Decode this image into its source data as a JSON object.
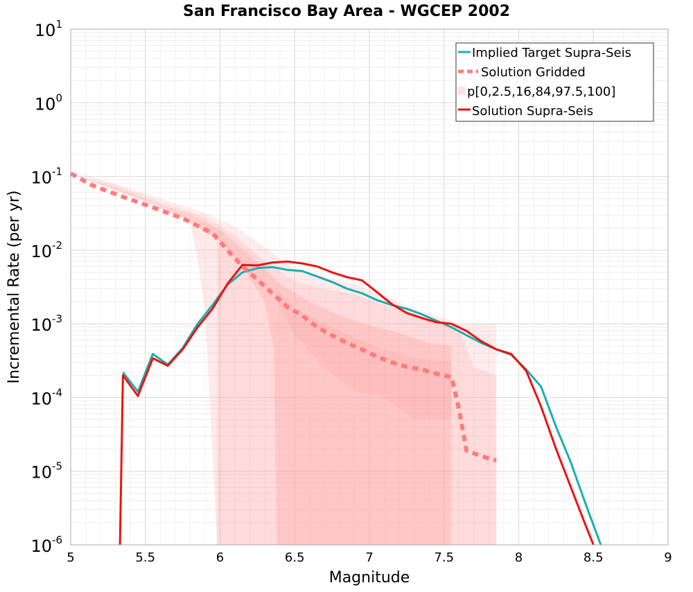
{
  "chart_data": {
    "type": "line",
    "title": "San Francisco Bay Area - WGCEP 2002",
    "xlabel": "Magnitude",
    "ylabel": "Incremental Rate (per yr)",
    "xlim": [
      5,
      9
    ],
    "ylim": [
      1e-06,
      10
    ],
    "yscale": "log",
    "grid": true,
    "legend_position": "top-right",
    "x_ticks": [
      5,
      5.5,
      6,
      6.5,
      7,
      7.5,
      8,
      8.5,
      9
    ],
    "x_tick_labels": [
      "5",
      "5.5",
      "6",
      "6.5",
      "7",
      "7.5",
      "8",
      "8.5",
      "9"
    ],
    "y_ticks": [
      {
        "value": 1e-06,
        "base": "10",
        "exp": "-6"
      },
      {
        "value": 1e-05,
        "base": "10",
        "exp": "-5"
      },
      {
        "value": 0.0001,
        "base": "10",
        "exp": "-4"
      },
      {
        "value": 0.001,
        "base": "10",
        "exp": "-3"
      },
      {
        "value": 0.01,
        "base": "10",
        "exp": "-2"
      },
      {
        "value": 0.1,
        "base": "10",
        "exp": "-1"
      },
      {
        "value": 1,
        "base": "10",
        "exp": "0"
      },
      {
        "value": 10,
        "base": "10",
        "exp": "1"
      }
    ],
    "series": [
      {
        "name": "Implied Target Supra-Seis",
        "color": "#1aaeae",
        "style": "solid",
        "points": [
          [
            5.35,
            0.00022
          ],
          [
            5.45,
            0.00012
          ],
          [
            5.55,
            0.00039
          ],
          [
            5.65,
            0.00028
          ],
          [
            5.75,
            0.00047
          ],
          [
            5.85,
            0.001
          ],
          [
            5.95,
            0.0018
          ],
          [
            6.05,
            0.0034
          ],
          [
            6.15,
            0.005
          ],
          [
            6.25,
            0.0057
          ],
          [
            6.35,
            0.0059
          ],
          [
            6.45,
            0.0054
          ],
          [
            6.55,
            0.0052
          ],
          [
            6.65,
            0.0044
          ],
          [
            6.75,
            0.0037
          ],
          [
            6.85,
            0.003
          ],
          [
            6.95,
            0.0026
          ],
          [
            7.05,
            0.0021
          ],
          [
            7.15,
            0.0018
          ],
          [
            7.25,
            0.0016
          ],
          [
            7.35,
            0.00135
          ],
          [
            7.45,
            0.0011
          ],
          [
            7.55,
            0.0009
          ],
          [
            7.65,
            0.0007
          ],
          [
            7.75,
            0.00055
          ],
          [
            7.85,
            0.00045
          ],
          [
            7.95,
            0.00038
          ],
          [
            8.05,
            0.00024
          ],
          [
            8.15,
            0.00014
          ],
          [
            8.25,
            4e-05
          ],
          [
            8.35,
            1.3e-05
          ],
          [
            8.45,
            3.5e-06
          ],
          [
            8.55,
            1e-06
          ]
        ]
      },
      {
        "name": "Solution Gridded",
        "color": "#ff7b7b",
        "style": "dashed",
        "points": [
          [
            5.0,
            0.11
          ],
          [
            5.15,
            0.075
          ],
          [
            5.35,
            0.053
          ],
          [
            5.55,
            0.038
          ],
          [
            5.75,
            0.027
          ],
          [
            5.95,
            0.017
          ],
          [
            6.05,
            0.01
          ],
          [
            6.15,
            0.006
          ],
          [
            6.25,
            0.004
          ],
          [
            6.35,
            0.0026
          ],
          [
            6.45,
            0.0017
          ],
          [
            6.55,
            0.0013
          ],
          [
            6.65,
            0.0009
          ],
          [
            6.75,
            0.0007
          ],
          [
            6.85,
            0.00055
          ],
          [
            6.95,
            0.00045
          ],
          [
            7.05,
            0.00036
          ],
          [
            7.15,
            0.0003
          ],
          [
            7.25,
            0.00026
          ],
          [
            7.35,
            0.00024
          ],
          [
            7.45,
            0.00021
          ],
          [
            7.55,
            0.00019
          ],
          [
            7.6,
            7e-05
          ],
          [
            7.65,
            1.9e-05
          ],
          [
            7.75,
            1.6e-05
          ],
          [
            7.85,
            1.4e-05
          ]
        ]
      },
      {
        "name": "Solution Supra-Seis",
        "color": "#ee1111",
        "style": "solid",
        "points": [
          [
            5.33,
            1e-06
          ],
          [
            5.35,
            0.0002
          ],
          [
            5.45,
            0.000105
          ],
          [
            5.55,
            0.00034
          ],
          [
            5.65,
            0.00027
          ],
          [
            5.75,
            0.00045
          ],
          [
            5.85,
            0.0009
          ],
          [
            5.95,
            0.0016
          ],
          [
            6.05,
            0.0035
          ],
          [
            6.15,
            0.0063
          ],
          [
            6.25,
            0.0062
          ],
          [
            6.35,
            0.0068
          ],
          [
            6.45,
            0.007
          ],
          [
            6.55,
            0.0066
          ],
          [
            6.65,
            0.006
          ],
          [
            6.75,
            0.005
          ],
          [
            6.85,
            0.0043
          ],
          [
            6.95,
            0.0039
          ],
          [
            7.05,
            0.0027
          ],
          [
            7.15,
            0.00185
          ],
          [
            7.25,
            0.0014
          ],
          [
            7.35,
            0.0012
          ],
          [
            7.45,
            0.00105
          ],
          [
            7.55,
            0.001
          ],
          [
            7.65,
            0.0008
          ],
          [
            7.75,
            0.00058
          ],
          [
            7.85,
            0.00045
          ],
          [
            7.95,
            0.00039
          ],
          [
            8.05,
            0.00023
          ],
          [
            8.15,
            7.5e-05
          ],
          [
            8.25,
            2e-05
          ],
          [
            8.35,
            6e-06
          ],
          [
            8.45,
            1.8e-06
          ],
          [
            8.5,
            1e-06
          ]
        ]
      }
    ],
    "percentile_bands": {
      "name": "p[0,2.5,16,84,97.5,100]",
      "color": "#ff9b9b",
      "bands": [
        {
          "label": "p0-p100",
          "opacity": 0.18,
          "upper": [
            [
              5.0,
              0.12
            ],
            [
              5.3,
              0.08
            ],
            [
              5.6,
              0.05
            ],
            [
              5.9,
              0.032
            ],
            [
              6.1,
              0.021
            ],
            [
              6.3,
              0.011
            ],
            [
              6.5,
              0.0055
            ],
            [
              6.7,
              0.0043
            ],
            [
              6.9,
              0.0035
            ],
            [
              7.1,
              0.0024
            ],
            [
              7.3,
              0.0016
            ],
            [
              7.5,
              0.0012
            ],
            [
              7.6,
              0.001
            ],
            [
              7.85,
              0.001
            ]
          ],
          "lower": [
            [
              5.0,
              0.12
            ],
            [
              5.3,
              0.07
            ],
            [
              5.6,
              0.045
            ],
            [
              5.8,
              0.03
            ],
            [
              5.98,
              0.015
            ],
            [
              5.98,
              1e-06
            ],
            [
              7.85,
              1e-06
            ]
          ]
        },
        {
          "label": "p2.5-p97.5",
          "opacity": 0.22,
          "upper": [
            [
              5.0,
              0.11
            ],
            [
              5.3,
              0.075
            ],
            [
              5.6,
              0.045
            ],
            [
              5.9,
              0.028
            ],
            [
              6.1,
              0.016
            ],
            [
              6.3,
              0.007
            ],
            [
              6.5,
              0.0038
            ],
            [
              6.7,
              0.003
            ],
            [
              6.9,
              0.0025
            ],
            [
              7.1,
              0.0018
            ],
            [
              7.3,
              0.0013
            ],
            [
              7.5,
              0.001
            ],
            [
              7.6,
              0.0008
            ],
            [
              7.7,
              0.00026
            ],
            [
              7.85,
              0.0002
            ]
          ],
          "lower": [
            [
              5.0,
              0.11
            ],
            [
              5.3,
              0.065
            ],
            [
              5.6,
              0.04
            ],
            [
              5.8,
              0.025
            ],
            [
              5.85,
              0.0075
            ],
            [
              5.9,
              0.0015
            ],
            [
              5.98,
              1e-06
            ],
            [
              7.85,
              1e-06
            ]
          ]
        },
        {
          "label": "p16-p84",
          "opacity": 0.3,
          "upper": [
            [
              5.0,
              0.11
            ],
            [
              5.4,
              0.06
            ],
            [
              5.8,
              0.03
            ],
            [
              6.0,
              0.019
            ],
            [
              6.2,
              0.0085
            ],
            [
              6.4,
              0.0035
            ],
            [
              6.6,
              0.002
            ],
            [
              6.8,
              0.0013
            ],
            [
              7.0,
              0.00095
            ],
            [
              7.2,
              0.00075
            ],
            [
              7.4,
              0.00055
            ],
            [
              7.55,
              0.0005
            ],
            [
              7.55,
              0.00032
            ]
          ],
          "lower": [
            [
              5.0,
              0.11
            ],
            [
              5.4,
              0.055
            ],
            [
              5.8,
              0.024
            ],
            [
              6.0,
              0.013
            ],
            [
              6.15,
              0.006
            ],
            [
              6.3,
              0.002
            ],
            [
              6.36,
              0.00045
            ],
            [
              6.38,
              1e-06
            ],
            [
              7.55,
              1e-06
            ]
          ]
        },
        {
          "label": "median-core",
          "opacity": 0.22,
          "upper": [
            [
              6.38,
              0.003
            ],
            [
              6.5,
              0.0016
            ],
            [
              6.7,
              0.001
            ],
            [
              6.9,
              0.00065
            ],
            [
              7.1,
              0.00045
            ],
            [
              7.3,
              0.00035
            ],
            [
              7.55,
              0.0003
            ]
          ],
          "lower": [
            [
              6.38,
              0.002
            ],
            [
              6.5,
              0.0007
            ],
            [
              6.7,
              0.00025
            ],
            [
              6.9,
              0.00012
            ],
            [
              7.1,
              0.0001
            ],
            [
              7.3,
              5e-05
            ],
            [
              7.55,
              5e-05
            ]
          ]
        }
      ]
    },
    "legend": [
      {
        "label": "Implied Target Supra-Seis",
        "color": "#1aaeae",
        "marker": "line"
      },
      {
        "label": "Solution Gridded",
        "color": "#ff7b7b",
        "marker": "dashed"
      },
      {
        "label": "p[0,2.5,16,84,97.5,100]",
        "color": "#ffe0e0",
        "marker": "patch"
      },
      {
        "label": "Solution Supra-Seis",
        "color": "#ee1111",
        "marker": "line"
      }
    ]
  }
}
